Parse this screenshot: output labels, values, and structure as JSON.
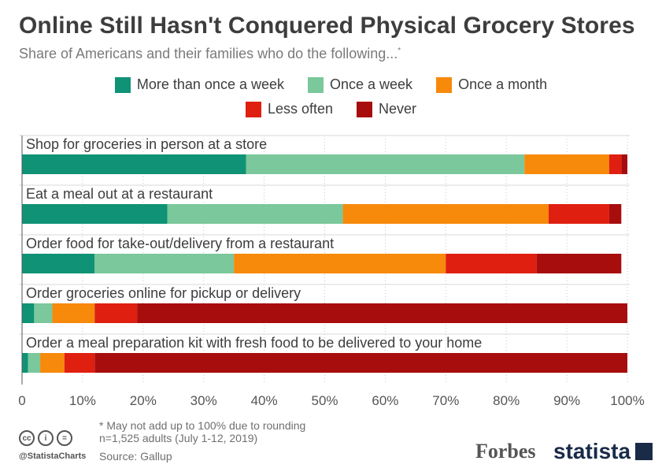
{
  "title": "Online Still Hasn't Conquered Physical Grocery Stores",
  "subtitle": "Share of Americans and their families who do the following...",
  "subtitle_mark": "*",
  "footnote": "* May not add up to 100% due to rounding",
  "sample": "n=1,525 adults (July 1-12, 2019)",
  "source": "Source: Gallup",
  "handle": "@StatistaCharts",
  "brand_forbes": "Forbes",
  "brand_statista": "statista",
  "cc_icons": [
    "cc",
    "i",
    "="
  ],
  "chart_data": {
    "type": "bar",
    "orientation": "horizontal",
    "stacked": true,
    "title": "Online Still Hasn't Conquered Physical Grocery Stores",
    "subtitle": "Share of Americans and their families who do the following...",
    "categories": [
      "Shop for groceries in person at a store",
      "Eat a meal out at a restaurant",
      "Order food for take-out/delivery from a restaurant",
      "Order groceries online for pickup or delivery",
      "Order a meal preparation kit with fresh food to be delivered to your home"
    ],
    "series": [
      {
        "name": "More than once a week",
        "color": "#0f9275",
        "values": [
          37,
          24,
          12,
          2,
          1
        ]
      },
      {
        "name": "Once a week",
        "color": "#7ac89b",
        "values": [
          46,
          29,
          23,
          3,
          2
        ]
      },
      {
        "name": "Once a month",
        "color": "#f7890b",
        "values": [
          14,
          34,
          35,
          7,
          4
        ]
      },
      {
        "name": "Less often",
        "color": "#df1f10",
        "values": [
          2,
          10,
          15,
          7,
          5
        ]
      },
      {
        "name": "Never",
        "color": "#a80d0d",
        "values": [
          1,
          2,
          14,
          81,
          88
        ]
      }
    ],
    "x_ticks": [
      "0",
      "10%",
      "20%",
      "30%",
      "40%",
      "50%",
      "60%",
      "70%",
      "80%",
      "90%",
      "100%"
    ],
    "xlim": [
      0,
      100
    ],
    "legend_position": "top",
    "grid": "vertical dotted"
  }
}
